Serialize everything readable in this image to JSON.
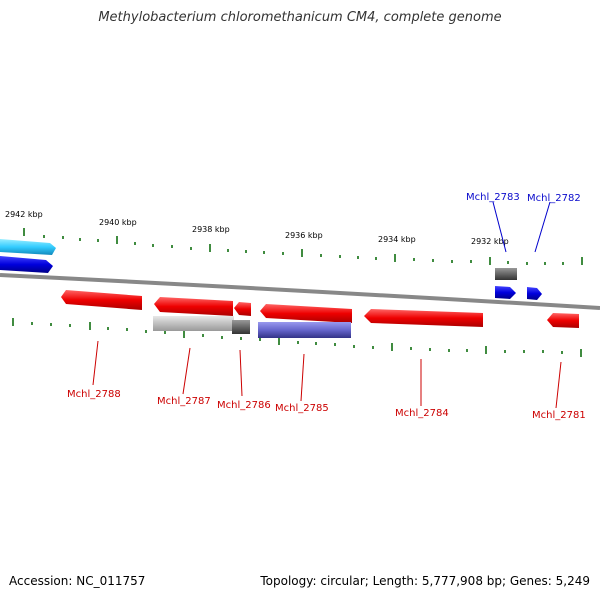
{
  "title": "Methylobacterium chloromethanicum CM4, complete genome",
  "footer": {
    "accession": "Accession: NC_011757",
    "topology": "Topology: circular; Length: 5,777,908 bp; Genes: 5,249"
  },
  "scale": {
    "ticks": [
      "2942 kbp",
      "2940 kbp",
      "2938 kbp",
      "2936 kbp",
      "2934 kbp",
      "2932 kbp"
    ]
  },
  "genes": {
    "top": [
      "Mchl_2783",
      "Mchl_2782"
    ],
    "bottom": [
      "Mchl_2788",
      "Mchl_2787",
      "Mchl_2786",
      "Mchl_2785",
      "Mchl_2784",
      "Mchl_2781"
    ]
  },
  "colors": {
    "forward": "#0000ee",
    "reverse": "#ee0000",
    "gray": "#666666",
    "light_gray": "#c0c0c0",
    "purple": "#6666cc",
    "cyan": "#33ccff",
    "tick": "#006600",
    "backbone": "#888888"
  }
}
